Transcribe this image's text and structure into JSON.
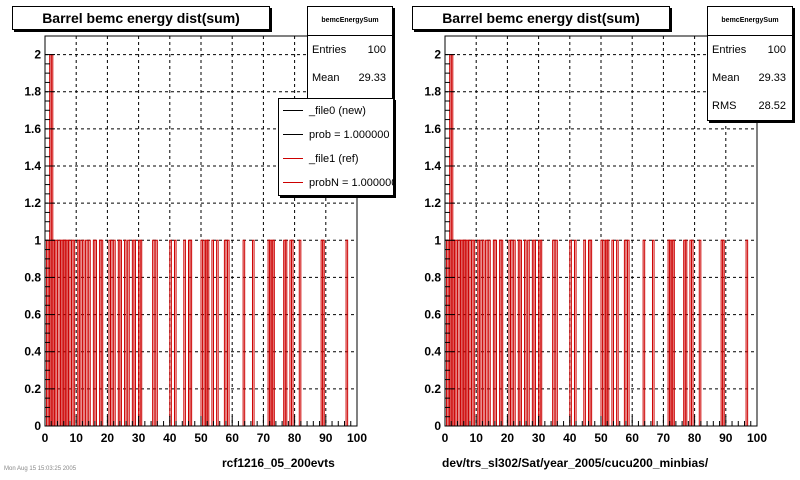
{
  "panels": [
    {
      "title": "Barrel bemc energy dist(sum)",
      "stats": {
        "name": "bemcEnergySum",
        "entries_label": "Entries",
        "entries": "100",
        "mean_label": "Mean",
        "mean": "29.33",
        "rms_label": "RMS",
        "rms": "28.52"
      },
      "legend": [
        {
          "label": "_file0 (new)",
          "color": "#000000"
        },
        {
          "label": "prob = 1.000000",
          "color": "#000000"
        },
        {
          "label": "_file1 (ref)",
          "color": "#cc0000"
        },
        {
          "label": "probN = 1.000000",
          "color": "#cc0000"
        }
      ],
      "footer": "rcf1216_05_200evts"
    },
    {
      "title": "Barrel bemc energy dist(sum)",
      "stats": {
        "name": "bemcEnergySum",
        "entries_label": "Entries",
        "entries": "100",
        "mean_label": "Mean",
        "mean": "29.33",
        "rms_label": "RMS",
        "rms": "28.52"
      },
      "footer": "dev/trs_sl302/Sat/year_2005/cucu200_minbias/"
    }
  ],
  "timestamp": "Mon Aug 15 15:03:25 2005",
  "chart_data": [
    {
      "type": "bar",
      "title": "Barrel bemc energy dist(sum)",
      "xlim": [
        0,
        100
      ],
      "ylim": [
        0,
        2.1
      ],
      "xticks": [
        0,
        10,
        20,
        30,
        40,
        50,
        60,
        70,
        80,
        90,
        100
      ],
      "yticks": [
        0,
        0.2,
        0.4,
        0.6,
        0.8,
        1,
        1.2,
        1.4,
        1.6,
        1.8,
        2
      ],
      "grid": true,
      "legend_position": "top-right",
      "bin_width": 0.5,
      "series": [
        {
          "name": "_file1 (ref)",
          "color": "#cc0000",
          "x": [
            0.5,
            1.0,
            1.5,
            2.0,
            2.5,
            3.0,
            3.5,
            4.5,
            5.0,
            5.5,
            6.0,
            6.5,
            7.0,
            7.5,
            8.5,
            9.0,
            10.5,
            11.0,
            12.0,
            13.0,
            14.0,
            15.5,
            16.0,
            17.5,
            18.0,
            20.5,
            21.0,
            22.0,
            23.5,
            24.0,
            25.5,
            26.5,
            28.0,
            28.5,
            30.0,
            30.5,
            34.5,
            35.5,
            40.0,
            41.5,
            44.5,
            46.0,
            46.5,
            50.0,
            51.0,
            51.5,
            52.0,
            53.5,
            55.0,
            57.5,
            58.5,
            63.5,
            66.5,
            71.5,
            72.0,
            72.5,
            73.0,
            76.5,
            77.0,
            78.5,
            79.0,
            81.5,
            88.5,
            89.0,
            96.5
          ],
          "y": [
            1,
            1,
            2,
            2,
            1,
            1,
            1,
            1,
            1,
            1,
            1,
            1,
            1,
            1,
            1,
            1,
            1,
            1,
            1,
            1,
            1,
            1,
            1,
            1,
            1,
            1,
            1,
            1,
            1,
            1,
            1,
            1,
            1,
            1,
            1,
            1,
            1,
            1,
            1,
            1,
            1,
            1,
            1,
            1,
            1,
            1,
            1,
            1,
            1,
            1,
            1,
            1,
            1,
            1,
            1,
            1,
            1,
            1,
            1,
            1,
            1,
            1,
            1,
            1,
            1
          ]
        }
      ]
    },
    {
      "type": "bar",
      "title": "Barrel bemc energy dist(sum)",
      "xlim": [
        0,
        100
      ],
      "ylim": [
        0,
        2.1
      ],
      "xticks": [
        0,
        10,
        20,
        30,
        40,
        50,
        60,
        70,
        80,
        90,
        100
      ],
      "yticks": [
        0,
        0.2,
        0.4,
        0.6,
        0.8,
        1,
        1.2,
        1.4,
        1.6,
        1.8,
        2
      ],
      "grid": true,
      "bin_width": 0.5,
      "series": [
        {
          "color": "#cc0000",
          "x": [
            0.5,
            1.0,
            1.5,
            2.0,
            2.5,
            3.0,
            3.5,
            4.5,
            5.0,
            5.5,
            6.0,
            6.5,
            7.0,
            7.5,
            8.5,
            9.0,
            10.5,
            11.0,
            12.0,
            13.0,
            14.0,
            15.5,
            16.0,
            17.5,
            18.0,
            20.5,
            21.0,
            22.0,
            23.5,
            24.0,
            25.5,
            26.5,
            28.0,
            28.5,
            30.0,
            30.5,
            34.5,
            35.5,
            40.0,
            41.5,
            44.5,
            46.0,
            46.5,
            50.0,
            51.0,
            51.5,
            52.0,
            53.5,
            55.0,
            57.5,
            58.5,
            63.5,
            66.5,
            71.5,
            72.0,
            72.5,
            73.0,
            76.5,
            77.0,
            78.5,
            79.0,
            81.5,
            88.5,
            89.0,
            96.5
          ],
          "y": [
            1,
            1,
            2,
            2,
            1,
            1,
            1,
            1,
            1,
            1,
            1,
            1,
            1,
            1,
            1,
            1,
            1,
            1,
            1,
            1,
            1,
            1,
            1,
            1,
            1,
            1,
            1,
            1,
            1,
            1,
            1,
            1,
            1,
            1,
            1,
            1,
            1,
            1,
            1,
            1,
            1,
            1,
            1,
            1,
            1,
            1,
            1,
            1,
            1,
            1,
            1,
            1,
            1,
            1,
            1,
            1,
            1,
            1,
            1,
            1,
            1,
            1,
            1,
            1,
            1
          ]
        }
      ]
    }
  ]
}
